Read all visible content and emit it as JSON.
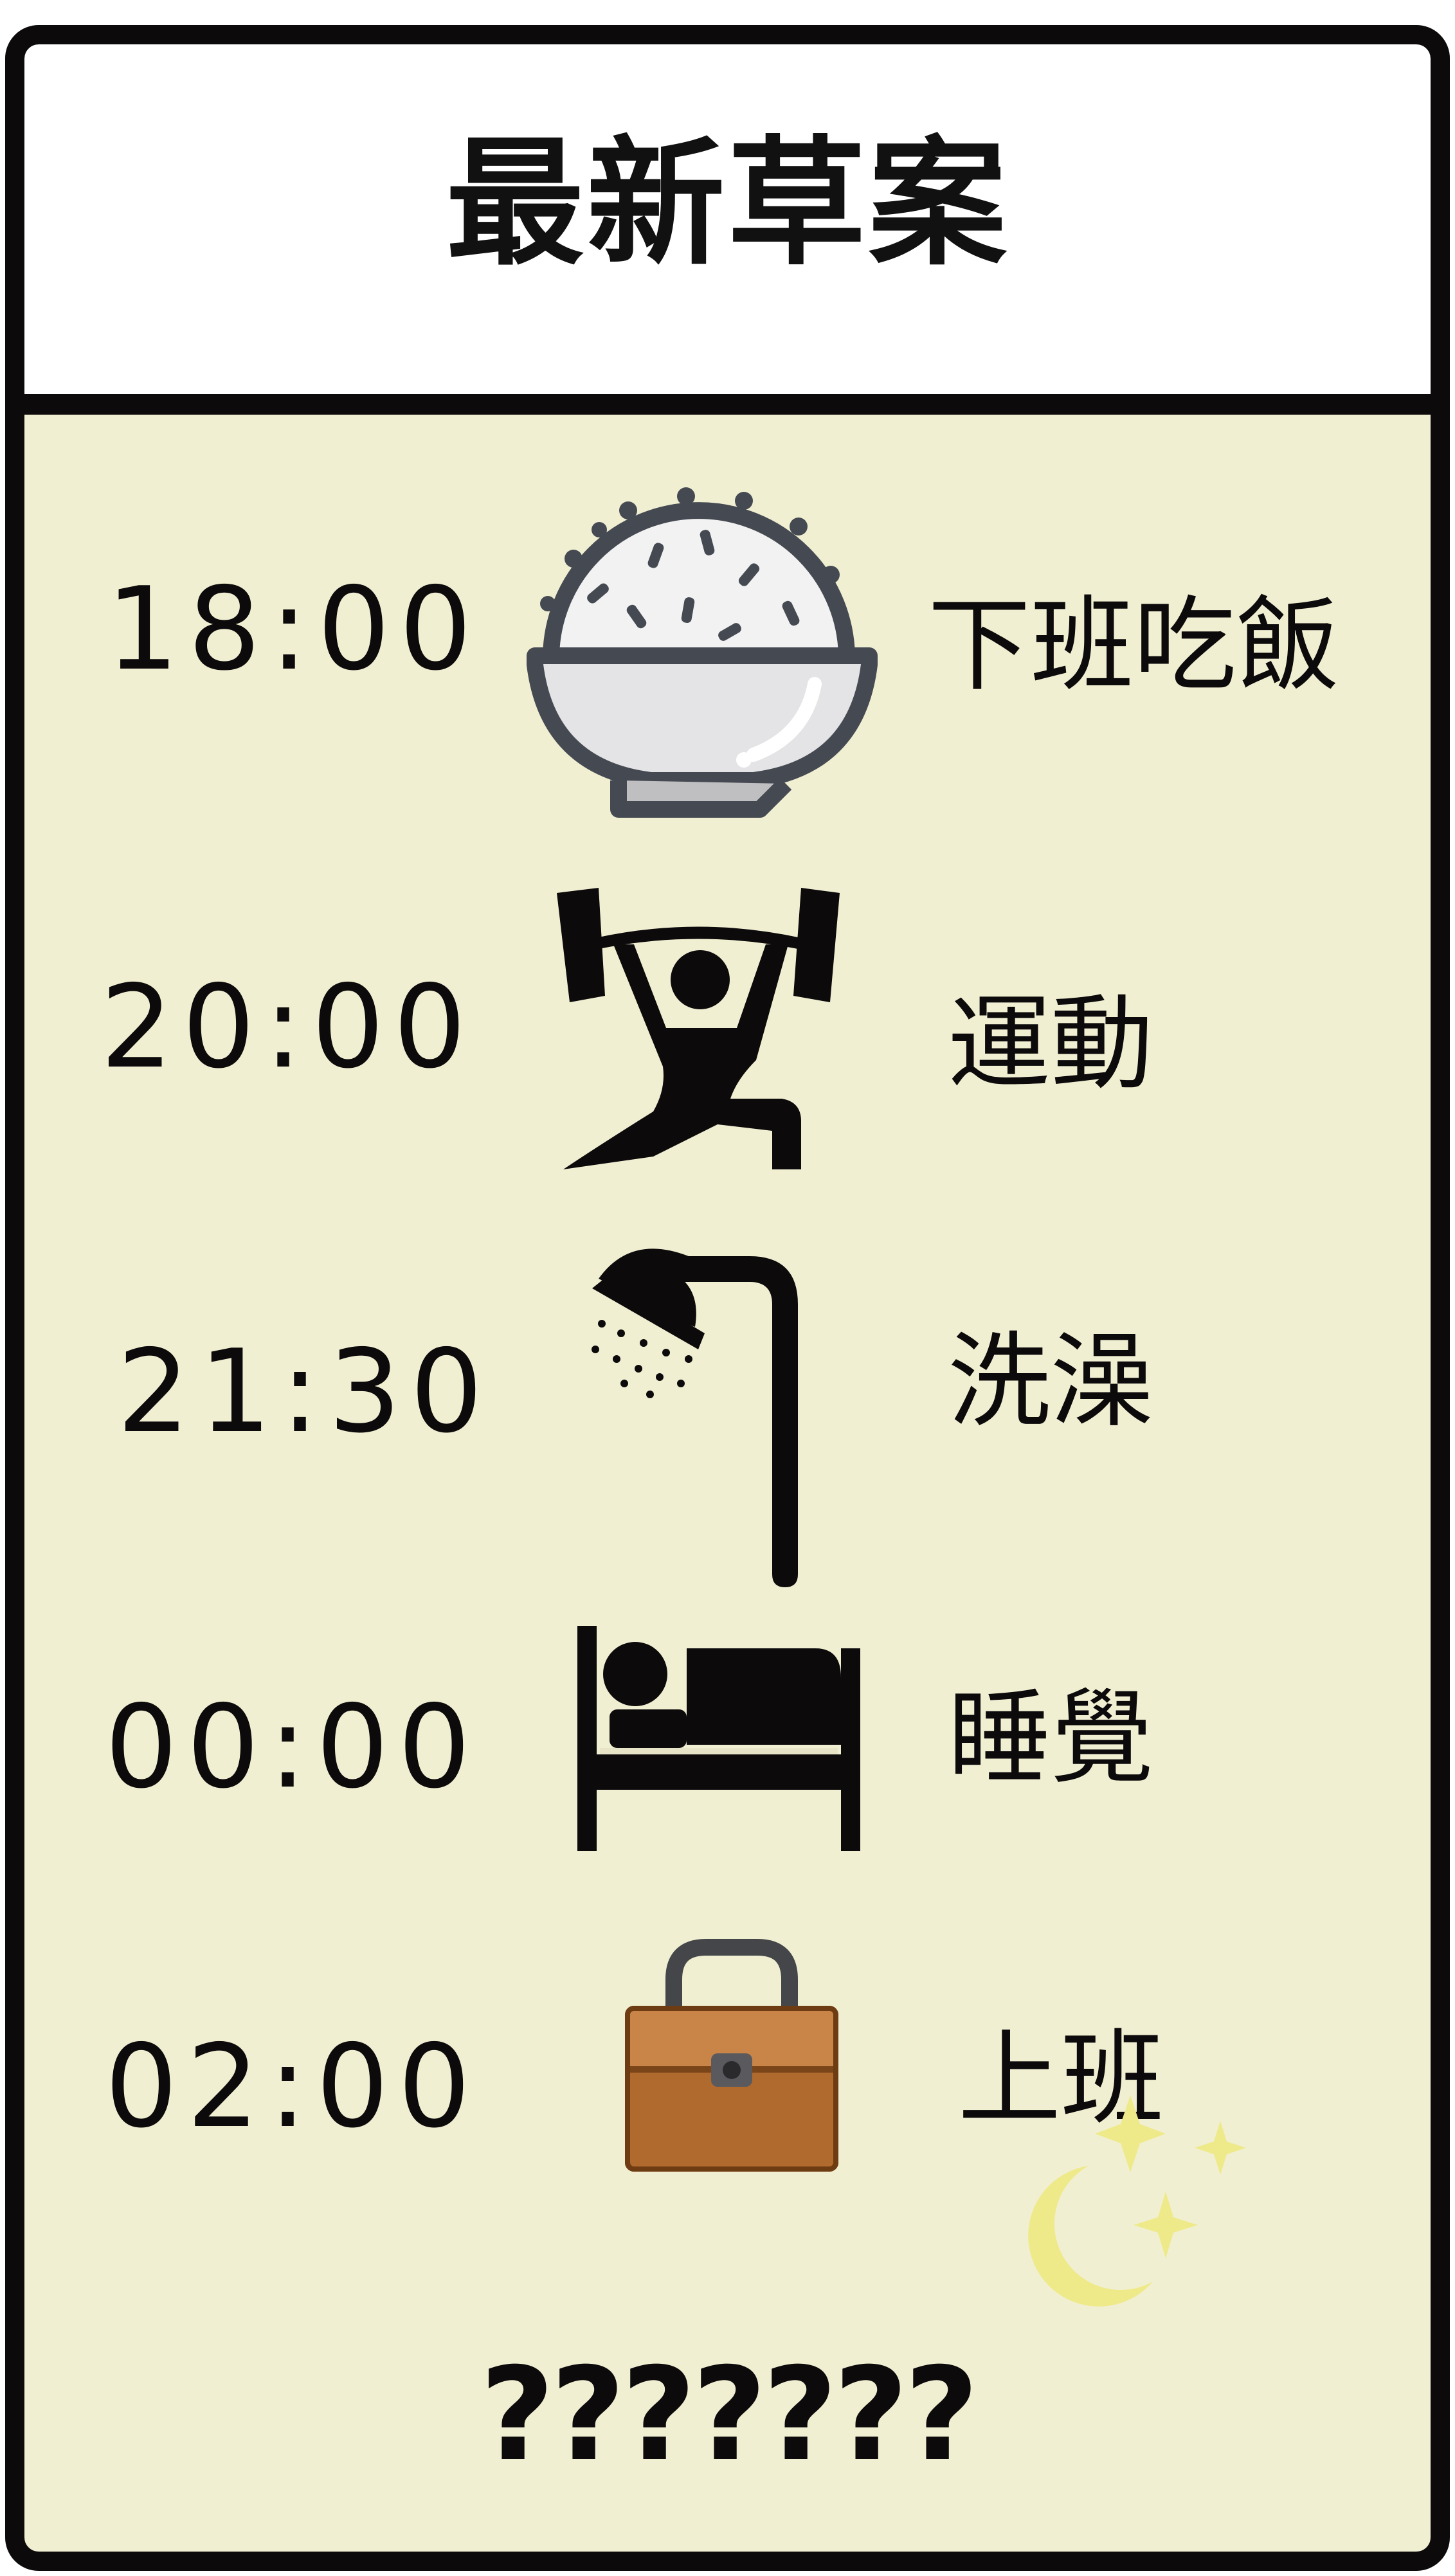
{
  "title": "最新草案",
  "schedule": [
    {
      "time": "18:00",
      "activity": "下班吃飯",
      "icon": "rice-bowl-icon"
    },
    {
      "time": "20:00",
      "activity": "運動",
      "icon": "weightlifter-icon"
    },
    {
      "time": "21:30",
      "activity": "洗澡",
      "icon": "shower-icon"
    },
    {
      "time": "00:00",
      "activity": "睡覺",
      "icon": "bed-icon"
    },
    {
      "time": "02:00",
      "activity": "上班",
      "icon": "briefcase-icon"
    }
  ],
  "footer": "???????",
  "colors": {
    "background": "#f1efd2",
    "border": "#0c0a0b",
    "header": "#ffffff",
    "moon": "#eeea8a"
  }
}
